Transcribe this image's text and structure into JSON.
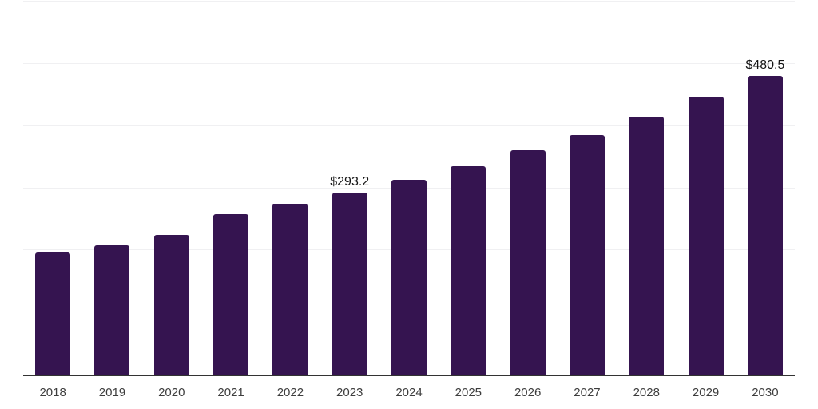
{
  "chart_data": {
    "type": "bar",
    "title": "",
    "xlabel": "",
    "ylabel": "",
    "categories": [
      "2018",
      "2019",
      "2020",
      "2021",
      "2022",
      "2023",
      "2024",
      "2025",
      "2026",
      "2027",
      "2028",
      "2029",
      "2030"
    ],
    "values": [
      196.6,
      208.2,
      224.9,
      258.6,
      275.3,
      293.2,
      312.9,
      335.2,
      361.3,
      385.3,
      415.2,
      446.9,
      480.5
    ],
    "data_labels": [
      null,
      null,
      null,
      null,
      null,
      "$293.2",
      null,
      null,
      null,
      null,
      null,
      null,
      "$480.5"
    ],
    "ylim": [
      0,
      600
    ],
    "gridline_step": 100,
    "grid": "horizontal",
    "y_tick_labels_visible": false,
    "legend_position": "none",
    "colors": {
      "bar": "#351450",
      "axis_line": "#333333",
      "gridline": "#f0f0f2",
      "tick_label": "#3d3d3d",
      "value_label": "#141414",
      "background": "#ffffff"
    }
  }
}
